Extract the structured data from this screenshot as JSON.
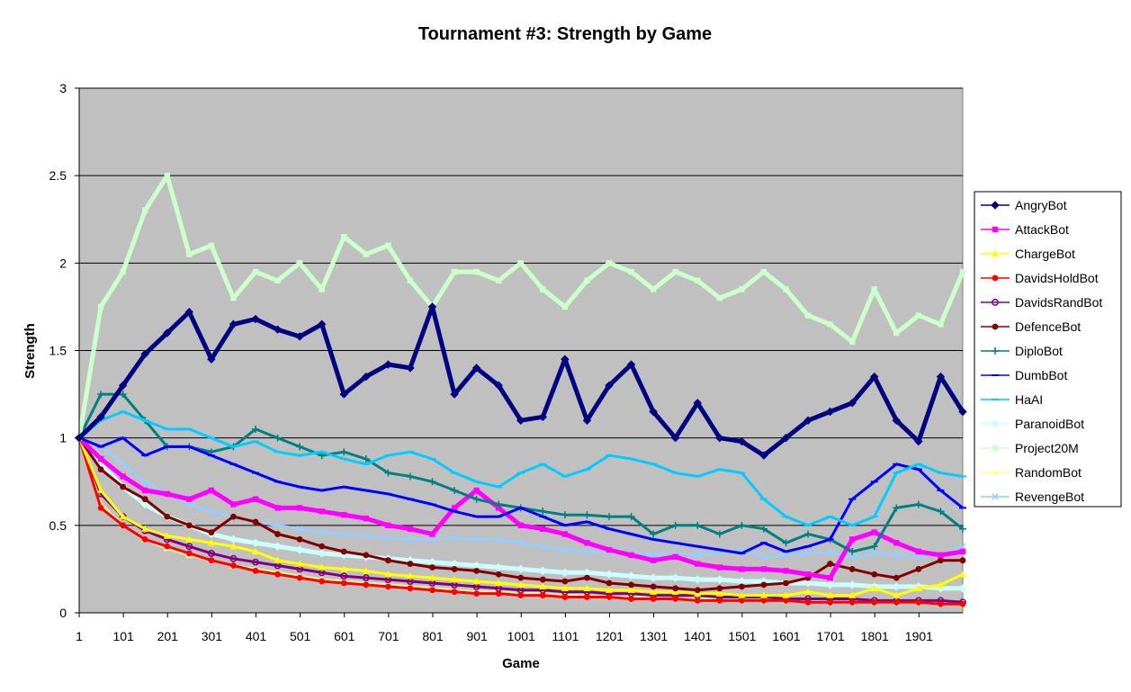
{
  "chart_data": {
    "type": "line",
    "title": "Tournament #3: Strength by Game",
    "xlabel": "Game",
    "ylabel": "Strength",
    "xlim": [
      1,
      2000
    ],
    "ylim": [
      0,
      3
    ],
    "x_tick_labels": [
      "1",
      "101",
      "201",
      "301",
      "401",
      "501",
      "601",
      "701",
      "801",
      "901",
      "1001",
      "1101",
      "1201",
      "1301",
      "1401",
      "1501",
      "1601",
      "1701",
      "1801",
      "1901"
    ],
    "y_tick_labels": [
      "0",
      "0.5",
      "1",
      "1.5",
      "2",
      "2.5",
      "3"
    ],
    "grid": true,
    "legend_position": "right",
    "plot_background": "#c0c0c0",
    "x": [
      1,
      50,
      100,
      150,
      200,
      250,
      300,
      350,
      400,
      450,
      500,
      550,
      600,
      650,
      700,
      750,
      800,
      850,
      900,
      950,
      1000,
      1050,
      1100,
      1150,
      1200,
      1250,
      1300,
      1350,
      1400,
      1450,
      1500,
      1550,
      1600,
      1650,
      1700,
      1750,
      1800,
      1850,
      1900,
      1950,
      2000
    ],
    "series": [
      {
        "name": "AngryBot",
        "color": "#000080",
        "marker": "diamond",
        "values": [
          1.0,
          1.12,
          1.3,
          1.48,
          1.6,
          1.72,
          1.45,
          1.65,
          1.68,
          1.62,
          1.58,
          1.65,
          1.25,
          1.35,
          1.42,
          1.4,
          1.75,
          1.25,
          1.4,
          1.3,
          1.1,
          1.12,
          1.45,
          1.1,
          1.3,
          1.42,
          1.15,
          1.0,
          1.2,
          1.0,
          0.98,
          0.9,
          1.0,
          1.1,
          1.15,
          1.2,
          1.35,
          1.1,
          0.98,
          1.35,
          1.15
        ]
      },
      {
        "name": "AttackBot",
        "color": "#ff00ff",
        "marker": "square",
        "values": [
          1.0,
          0.88,
          0.78,
          0.7,
          0.68,
          0.65,
          0.7,
          0.62,
          0.65,
          0.6,
          0.6,
          0.58,
          0.56,
          0.54,
          0.5,
          0.48,
          0.45,
          0.6,
          0.7,
          0.6,
          0.5,
          0.48,
          0.45,
          0.4,
          0.36,
          0.33,
          0.3,
          0.32,
          0.28,
          0.26,
          0.25,
          0.25,
          0.24,
          0.22,
          0.2,
          0.42,
          0.46,
          0.4,
          0.35,
          0.33,
          0.35
        ]
      },
      {
        "name": "ChargeBot",
        "color": "#ffff00",
        "marker": "triangle",
        "values": [
          1.0,
          0.7,
          0.55,
          0.48,
          0.44,
          0.42,
          0.4,
          0.38,
          0.35,
          0.3,
          0.28,
          0.26,
          0.25,
          0.24,
          0.22,
          0.21,
          0.2,
          0.19,
          0.18,
          0.17,
          0.16,
          0.15,
          0.14,
          0.14,
          0.13,
          0.13,
          0.12,
          0.12,
          0.11,
          0.11,
          0.1,
          0.1,
          0.1,
          0.12,
          0.1,
          0.1,
          0.14,
          0.1,
          0.14,
          0.16,
          0.22
        ]
      },
      {
        "name": "DavidsHoldBot",
        "color": "#ff0000",
        "marker": "circle",
        "values": [
          1.0,
          0.6,
          0.5,
          0.42,
          0.38,
          0.34,
          0.3,
          0.27,
          0.24,
          0.22,
          0.2,
          0.18,
          0.17,
          0.16,
          0.15,
          0.14,
          0.13,
          0.12,
          0.11,
          0.11,
          0.1,
          0.1,
          0.09,
          0.09,
          0.09,
          0.08,
          0.08,
          0.08,
          0.07,
          0.07,
          0.07,
          0.07,
          0.07,
          0.06,
          0.06,
          0.06,
          0.06,
          0.06,
          0.06,
          0.05,
          0.05
        ]
      },
      {
        "name": "DavidsRandBot",
        "color": "#800080",
        "marker": "ring",
        "values": [
          1.0,
          0.68,
          0.55,
          0.47,
          0.42,
          0.38,
          0.34,
          0.31,
          0.29,
          0.27,
          0.25,
          0.23,
          0.21,
          0.2,
          0.19,
          0.18,
          0.17,
          0.16,
          0.15,
          0.14,
          0.13,
          0.13,
          0.12,
          0.12,
          0.11,
          0.11,
          0.1,
          0.1,
          0.1,
          0.09,
          0.09,
          0.09,
          0.08,
          0.08,
          0.08,
          0.08,
          0.07,
          0.07,
          0.07,
          0.07,
          0.06
        ]
      },
      {
        "name": "DefenceBot",
        "color": "#800000",
        "marker": "circle",
        "values": [
          1.0,
          0.82,
          0.72,
          0.65,
          0.55,
          0.5,
          0.46,
          0.55,
          0.52,
          0.45,
          0.42,
          0.38,
          0.35,
          0.33,
          0.3,
          0.28,
          0.26,
          0.25,
          0.24,
          0.22,
          0.2,
          0.19,
          0.18,
          0.2,
          0.17,
          0.16,
          0.15,
          0.14,
          0.13,
          0.14,
          0.15,
          0.16,
          0.17,
          0.2,
          0.28,
          0.25,
          0.22,
          0.2,
          0.25,
          0.3,
          0.3
        ]
      },
      {
        "name": "DiploBot",
        "color": "#008080",
        "marker": "plus",
        "values": [
          1.0,
          1.25,
          1.25,
          1.1,
          0.95,
          0.95,
          0.92,
          0.95,
          1.05,
          1.0,
          0.95,
          0.9,
          0.92,
          0.88,
          0.8,
          0.78,
          0.75,
          0.7,
          0.65,
          0.62,
          0.6,
          0.58,
          0.56,
          0.56,
          0.55,
          0.55,
          0.45,
          0.5,
          0.5,
          0.45,
          0.5,
          0.48,
          0.4,
          0.45,
          0.42,
          0.35,
          0.38,
          0.6,
          0.62,
          0.58,
          0.48
        ]
      },
      {
        "name": "DumbBot",
        "color": "#0000ff",
        "marker": "dash",
        "values": [
          1.0,
          0.95,
          1.0,
          0.9,
          0.95,
          0.95,
          0.9,
          0.85,
          0.8,
          0.75,
          0.72,
          0.7,
          0.72,
          0.7,
          0.68,
          0.65,
          0.62,
          0.58,
          0.55,
          0.55,
          0.6,
          0.55,
          0.5,
          0.52,
          0.48,
          0.45,
          0.42,
          0.4,
          0.38,
          0.36,
          0.34,
          0.4,
          0.35,
          0.38,
          0.42,
          0.65,
          0.75,
          0.85,
          0.82,
          0.7,
          0.6
        ]
      },
      {
        "name": "HaAI",
        "color": "#00ccff",
        "marker": "dash",
        "values": [
          1.0,
          1.1,
          1.15,
          1.1,
          1.05,
          1.05,
          1.0,
          0.95,
          0.98,
          0.92,
          0.9,
          0.92,
          0.88,
          0.85,
          0.9,
          0.92,
          0.88,
          0.8,
          0.75,
          0.72,
          0.8,
          0.85,
          0.78,
          0.82,
          0.9,
          0.88,
          0.85,
          0.8,
          0.78,
          0.82,
          0.8,
          0.65,
          0.55,
          0.5,
          0.55,
          0.5,
          0.55,
          0.8,
          0.85,
          0.8,
          0.78
        ]
      },
      {
        "name": "ParanoidBot",
        "color": "#ccffff",
        "marker": "diamond",
        "values": [
          1.0,
          0.85,
          0.72,
          0.62,
          0.55,
          0.5,
          0.45,
          0.42,
          0.4,
          0.38,
          0.36,
          0.34,
          0.33,
          0.32,
          0.31,
          0.3,
          0.29,
          0.28,
          0.27,
          0.26,
          0.25,
          0.24,
          0.23,
          0.23,
          0.22,
          0.21,
          0.2,
          0.2,
          0.19,
          0.19,
          0.18,
          0.18,
          0.17,
          0.17,
          0.16,
          0.16,
          0.15,
          0.15,
          0.15,
          0.14,
          0.14
        ]
      },
      {
        "name": "Project20M",
        "color": "#ccffcc",
        "marker": "square",
        "values": [
          1.0,
          1.75,
          1.95,
          2.3,
          2.5,
          2.05,
          2.1,
          1.8,
          1.95,
          1.9,
          2.0,
          1.85,
          2.15,
          2.05,
          2.1,
          1.9,
          1.75,
          1.95,
          1.95,
          1.9,
          2.0,
          1.85,
          1.75,
          1.9,
          2.0,
          1.95,
          1.85,
          1.95,
          1.9,
          1.8,
          1.85,
          1.95,
          1.85,
          1.7,
          1.65,
          1.55,
          1.85,
          1.6,
          1.7,
          1.65,
          1.95
        ]
      },
      {
        "name": "RandomBot",
        "color": "#ffff99",
        "marker": "triangle",
        "values": [
          1.0,
          0.62,
          0.5,
          0.42,
          0.37,
          0.33,
          0.3,
          0.27,
          0.25,
          0.23,
          0.21,
          0.19,
          0.18,
          0.17,
          0.16,
          0.15,
          0.14,
          0.13,
          0.12,
          0.12,
          0.11,
          0.11,
          0.1,
          0.1,
          0.09,
          0.09,
          0.09,
          0.08,
          0.08,
          0.08,
          0.07,
          0.07,
          0.07,
          0.07,
          0.06,
          0.06,
          0.06,
          0.06,
          0.06,
          0.05,
          0.05
        ]
      },
      {
        "name": "RevengeBot",
        "color": "#99ccff",
        "marker": "cross",
        "values": [
          1.0,
          0.95,
          0.85,
          0.75,
          0.68,
          0.62,
          0.58,
          0.55,
          0.52,
          0.5,
          0.48,
          0.46,
          0.45,
          0.44,
          0.43,
          0.42,
          0.42,
          0.43,
          0.42,
          0.42,
          0.4,
          0.38,
          0.36,
          0.35,
          0.35,
          0.34,
          0.33,
          0.34,
          0.33,
          0.34,
          0.36,
          0.32,
          0.33,
          0.34,
          0.35,
          0.32,
          0.34,
          0.33,
          0.32,
          0.33,
          0.38
        ]
      }
    ]
  }
}
